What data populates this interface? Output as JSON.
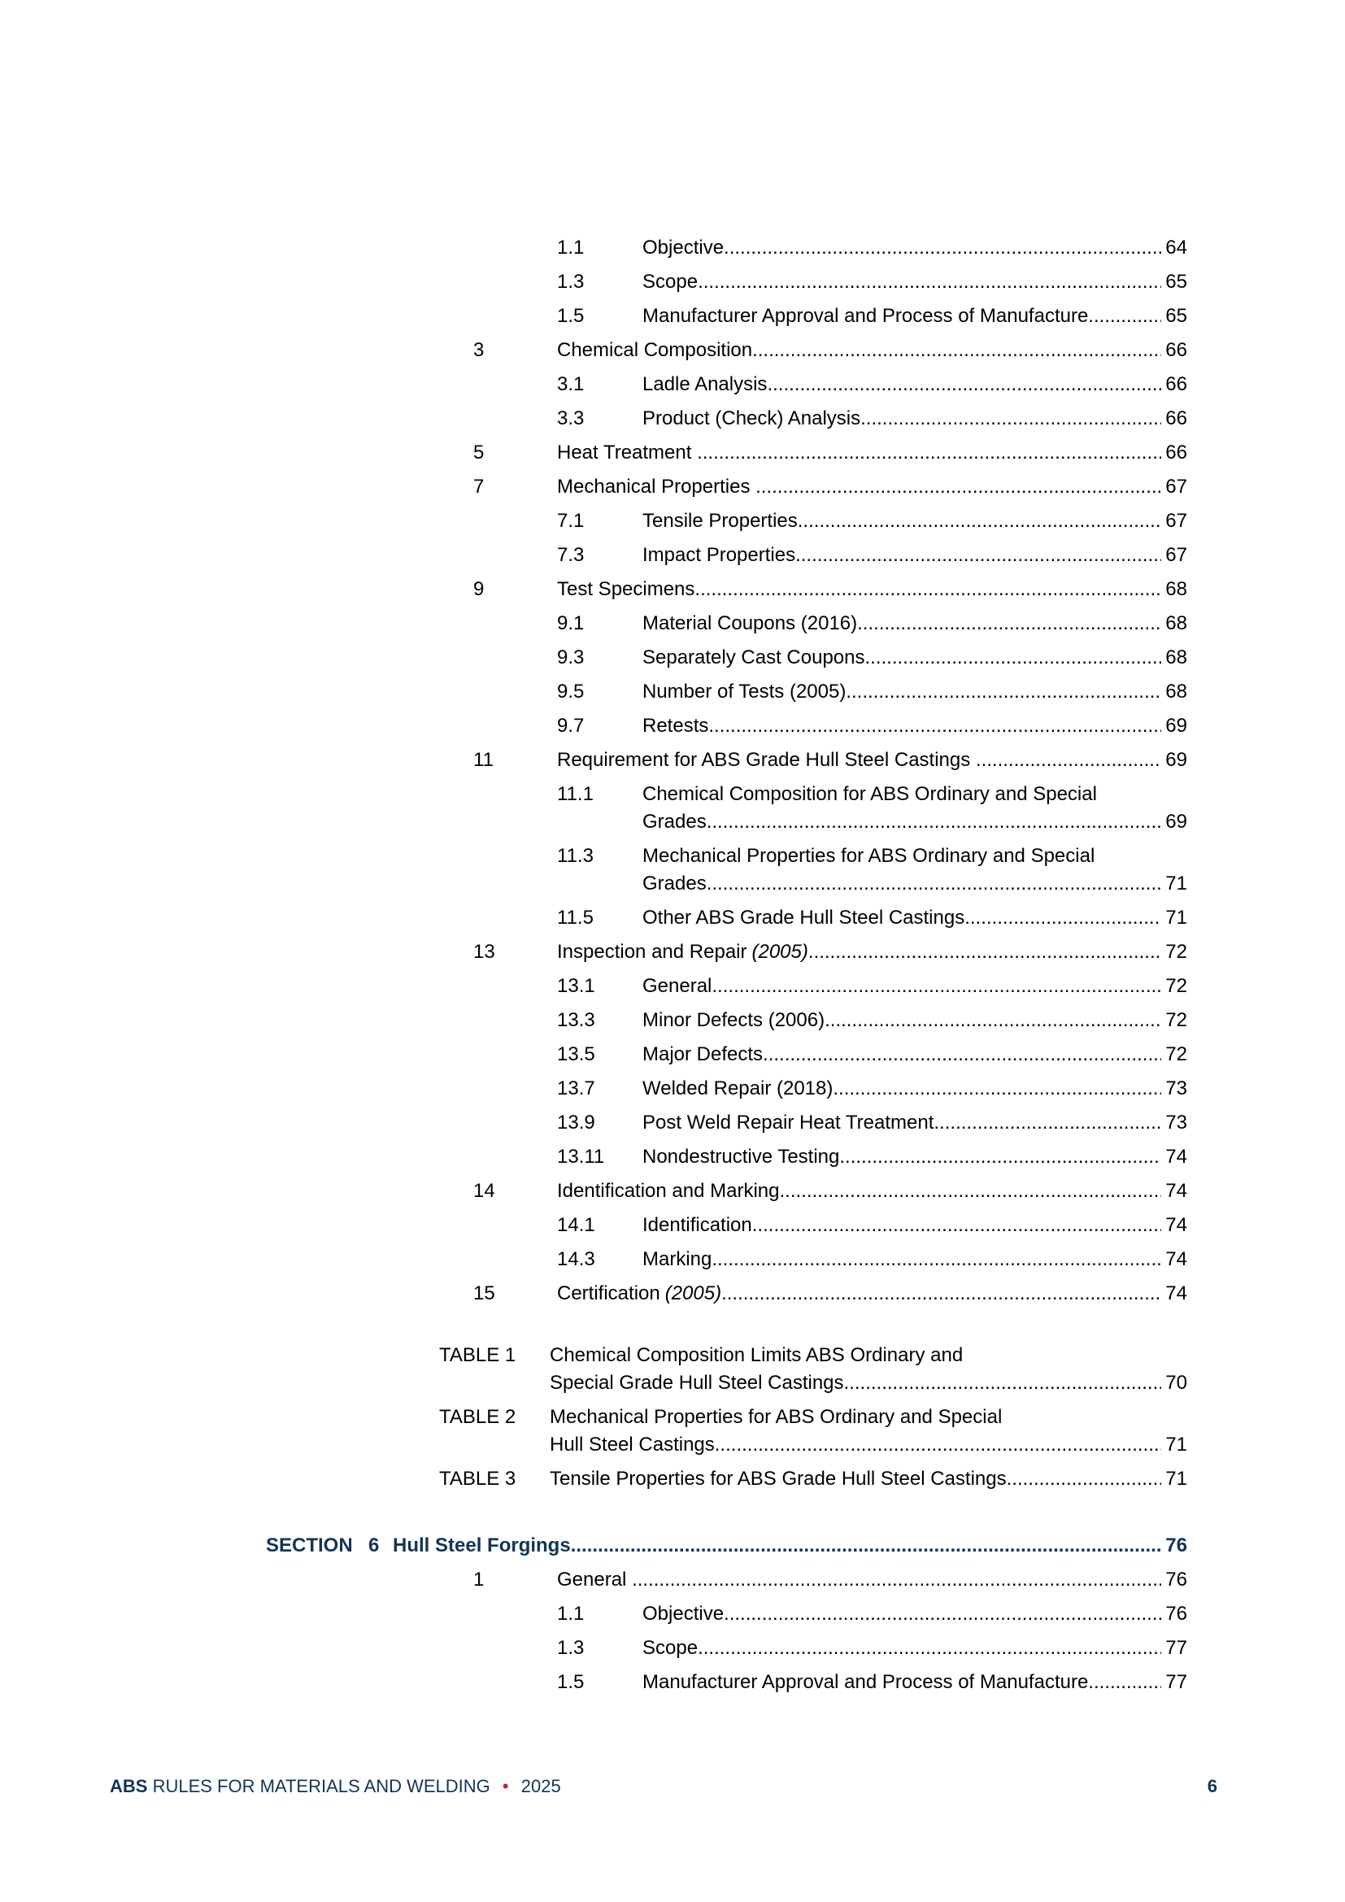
{
  "colors": {
    "navy": "#123556",
    "red": "#C2242E",
    "text": "#000000"
  },
  "toc": {
    "rows": [
      {
        "kind": "l2",
        "num": "1.1",
        "text": "Objective",
        "page": "64"
      },
      {
        "kind": "l2",
        "num": "1.3",
        "text": "Scope",
        "page": "65"
      },
      {
        "kind": "l2",
        "num": "1.5",
        "text": "Manufacturer Approval and Process of Manufacture",
        "page": "65"
      },
      {
        "kind": "l1",
        "num": "3",
        "text": "Chemical Composition",
        "page": "66"
      },
      {
        "kind": "l2",
        "num": "3.1",
        "text": "Ladle Analysis",
        "page": "66"
      },
      {
        "kind": "l2",
        "num": "3.3",
        "text": "Product (Check) Analysis",
        "page": "66"
      },
      {
        "kind": "l1",
        "num": "5",
        "text": "Heat Treatment ",
        "page": "66"
      },
      {
        "kind": "l1",
        "num": "7",
        "text": "Mechanical Properties ",
        "page": "67"
      },
      {
        "kind": "l2",
        "num": "7.1",
        "text": "Tensile Properties",
        "page": "67"
      },
      {
        "kind": "l2",
        "num": "7.3",
        "text": "Impact Properties",
        "page": "67"
      },
      {
        "kind": "l1",
        "num": "9",
        "text": "Test Specimens",
        "page": "68"
      },
      {
        "kind": "l2",
        "num": "9.1",
        "text": "Material Coupons (2016)",
        "page": "68"
      },
      {
        "kind": "l2",
        "num": "9.3",
        "text": "Separately Cast Coupons",
        "page": "68"
      },
      {
        "kind": "l2",
        "num": "9.5",
        "text": "Number of Tests (2005)",
        "page": "68"
      },
      {
        "kind": "l2",
        "num": "9.7",
        "text": "Retests",
        "page": "69"
      },
      {
        "kind": "l1",
        "num": "11",
        "text": "Requirement for ABS Grade Hull Steel Castings ",
        "page": "69"
      },
      {
        "kind": "l2",
        "num": "11.1",
        "pre": [
          "Chemical Composition for ABS Ordinary and Special"
        ],
        "text": "Grades",
        "page": "69"
      },
      {
        "kind": "l2",
        "num": "11.3",
        "pre": [
          "Mechanical Properties for ABS Ordinary and Special"
        ],
        "text": "Grades",
        "page": "71"
      },
      {
        "kind": "l2",
        "num": "11.5",
        "text": "Other ABS Grade Hull Steel Castings",
        "page": "71"
      },
      {
        "kind": "l1",
        "num": "13",
        "text": "Inspection and Repair",
        "italic": "(2005)",
        "page": "72"
      },
      {
        "kind": "l2",
        "num": "13.1",
        "text": "General",
        "page": "72"
      },
      {
        "kind": "l2",
        "num": "13.3",
        "text": "Minor Defects (2006)",
        "page": "72"
      },
      {
        "kind": "l2",
        "num": "13.5",
        "text": "Major Defects",
        "page": "72"
      },
      {
        "kind": "l2",
        "num": "13.7",
        "text": "Welded Repair (2018)",
        "page": "73"
      },
      {
        "kind": "l2",
        "num": "13.9",
        "text": "Post Weld Repair Heat Treatment",
        "page": "73"
      },
      {
        "kind": "l2",
        "num": "13.11",
        "text": "Nondestructive Testing",
        "page": "74"
      },
      {
        "kind": "l1",
        "num": "14",
        "text": "Identification and Marking",
        "page": "74"
      },
      {
        "kind": "l2",
        "num": "14.1",
        "text": "Identification",
        "page": "74"
      },
      {
        "kind": "l2",
        "num": "14.3",
        "text": "Marking",
        "page": "74"
      },
      {
        "kind": "l1",
        "num": "15",
        "text": "Certification",
        "italic": "(2005)",
        "page": "74"
      },
      {
        "kind": "table",
        "num": "TABLE 1",
        "gap": 42,
        "pre": [
          "Chemical Composition Limits ABS Ordinary and"
        ],
        "text": "Special Grade Hull Steel Castings",
        "page": "70"
      },
      {
        "kind": "table",
        "num": "TABLE 2",
        "pre": [
          "Mechanical Properties for ABS Ordinary and Special"
        ],
        "text": "Hull Steel Castings",
        "page": "71"
      },
      {
        "kind": "table",
        "num": "TABLE 3",
        "text": "Tensile Properties for ABS Grade Hull Steel Castings",
        "page": "71"
      },
      {
        "kind": "section",
        "label": "SECTION",
        "num": "6",
        "gap": 48,
        "text": "Hull Steel Forgings",
        "page": "76"
      },
      {
        "kind": "l1",
        "num": "1",
        "text": "General ",
        "page": "76"
      },
      {
        "kind": "l2",
        "num": "1.1",
        "text": "Objective",
        "page": "76"
      },
      {
        "kind": "l2",
        "num": "1.3",
        "text": "Scope",
        "page": "77"
      },
      {
        "kind": "l2",
        "num": "1.5",
        "text": "Manufacturer Approval and Process of Manufacture",
        "page": "77"
      }
    ]
  },
  "footer": {
    "brand": "ABS",
    "title": "RULES FOR MATERIALS AND WELDING",
    "separator": "•",
    "year": "2025",
    "page_number": "6"
  }
}
